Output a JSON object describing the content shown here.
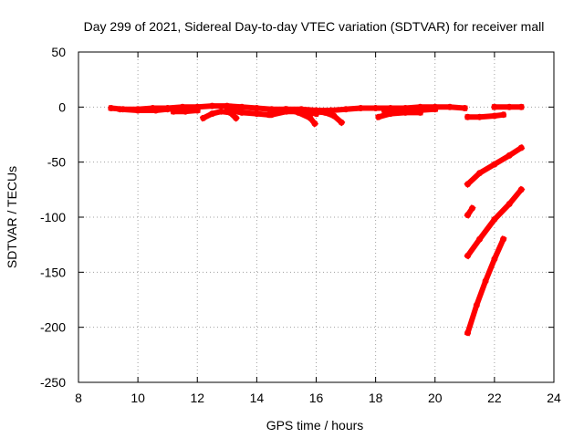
{
  "chart_data": {
    "type": "scatter",
    "title": "Day 299 of 2021, Sidereal Day-to-day VTEC variation (SDTVAR) for receiver mall",
    "xlabel": "GPS time / hours",
    "ylabel": "SDTVAR / TECUs",
    "xlim": [
      8,
      24
    ],
    "ylim": [
      -250,
      50
    ],
    "xticks": [
      8,
      10,
      12,
      14,
      16,
      18,
      20,
      22,
      24
    ],
    "yticks": [
      50,
      0,
      -50,
      -100,
      -150,
      -200,
      -250
    ],
    "grid": true,
    "marker_color": "#ff0000",
    "series": [
      {
        "x": [
          9.1,
          9.5,
          10.0,
          10.5,
          11.0,
          11.5,
          12.0,
          12.5,
          13.0,
          13.5,
          14.0,
          14.5,
          15.0,
          15.5,
          16.0,
          16.5,
          17.0,
          17.5,
          18.0,
          18.5,
          19.0,
          19.5,
          20.0,
          20.5,
          21.0
        ],
        "y": [
          -1,
          -2,
          -2,
          -1,
          -1,
          0,
          0,
          1,
          1,
          0,
          -1,
          -2,
          -2,
          -2,
          -3,
          -3,
          -2,
          -1,
          -1,
          -1,
          -1,
          0,
          0,
          0,
          -1
        ]
      },
      {
        "x": [
          9.4,
          10.0,
          10.6,
          11.0
        ],
        "y": [
          -2,
          -3,
          -3,
          -2
        ]
      },
      {
        "x": [
          11.2,
          11.6,
          12.0
        ],
        "y": [
          -4,
          -4,
          -3
        ]
      },
      {
        "x": [
          12.2,
          12.5,
          12.8,
          13.1,
          13.3
        ],
        "y": [
          -10,
          -6,
          -4,
          -5,
          -10
        ]
      },
      {
        "x": [
          13.0,
          13.5,
          14.0,
          14.4
        ],
        "y": [
          -3,
          -5,
          -6,
          -7
        ]
      },
      {
        "x": [
          14.5,
          15.0,
          15.5,
          16.0
        ],
        "y": [
          -7,
          -4,
          -4,
          -6
        ]
      },
      {
        "x": [
          15.0,
          15.4,
          15.8,
          15.95
        ],
        "y": [
          -2,
          -5,
          -10,
          -15
        ]
      },
      {
        "x": [
          15.9,
          16.3,
          16.6,
          16.85
        ],
        "y": [
          -4,
          -5,
          -8,
          -14
        ]
      },
      {
        "x": [
          18.1,
          18.5,
          19.0,
          19.5
        ],
        "y": [
          -9,
          -6,
          -5,
          -5
        ]
      },
      {
        "x": [
          18.3,
          18.8,
          19.4,
          20.0
        ],
        "y": [
          -3,
          -4,
          -3,
          -2
        ]
      },
      {
        "x": [
          21.1,
          21.5,
          22.0,
          22.3
        ],
        "y": [
          -9,
          -9,
          -8,
          -7
        ]
      },
      {
        "x": [
          22.0,
          22.5,
          22.9
        ],
        "y": [
          0,
          0,
          0
        ]
      },
      {
        "x": [
          21.1,
          21.5,
          22.0,
          22.5,
          22.9
        ],
        "y": [
          -70,
          -60,
          -52,
          -44,
          -37
        ]
      },
      {
        "x": [
          21.1,
          21.25
        ],
        "y": [
          -98,
          -92
        ]
      },
      {
        "x": [
          21.1,
          21.5,
          22.0,
          22.5,
          22.9
        ],
        "y": [
          -135,
          -120,
          -102,
          -88,
          -75
        ]
      },
      {
        "x": [
          21.1,
          21.4,
          21.7,
          22.0,
          22.3
        ],
        "y": [
          -205,
          -180,
          -158,
          -138,
          -120
        ]
      }
    ]
  }
}
